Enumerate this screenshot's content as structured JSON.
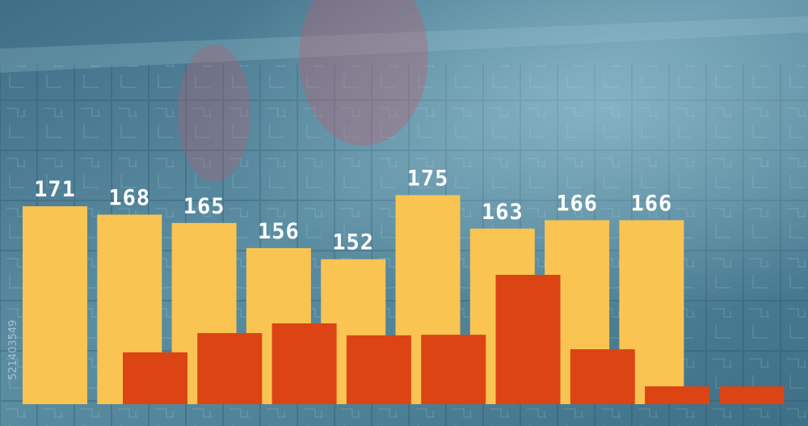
{
  "chart_data": {
    "type": "bar",
    "watermark_id": "521403549",
    "series": [
      {
        "color": "#f9c452",
        "values": [
          171,
          168,
          165,
          156,
          152,
          175,
          163,
          166,
          166
        ]
      },
      {
        "color": "#dc4414",
        "values": [
          118.6,
          125.5,
          129,
          124.7,
          124.9,
          146.4,
          119.7,
          106.4,
          106.4
        ]
      }
    ],
    "ylim": [
      100,
      245
    ]
  }
}
